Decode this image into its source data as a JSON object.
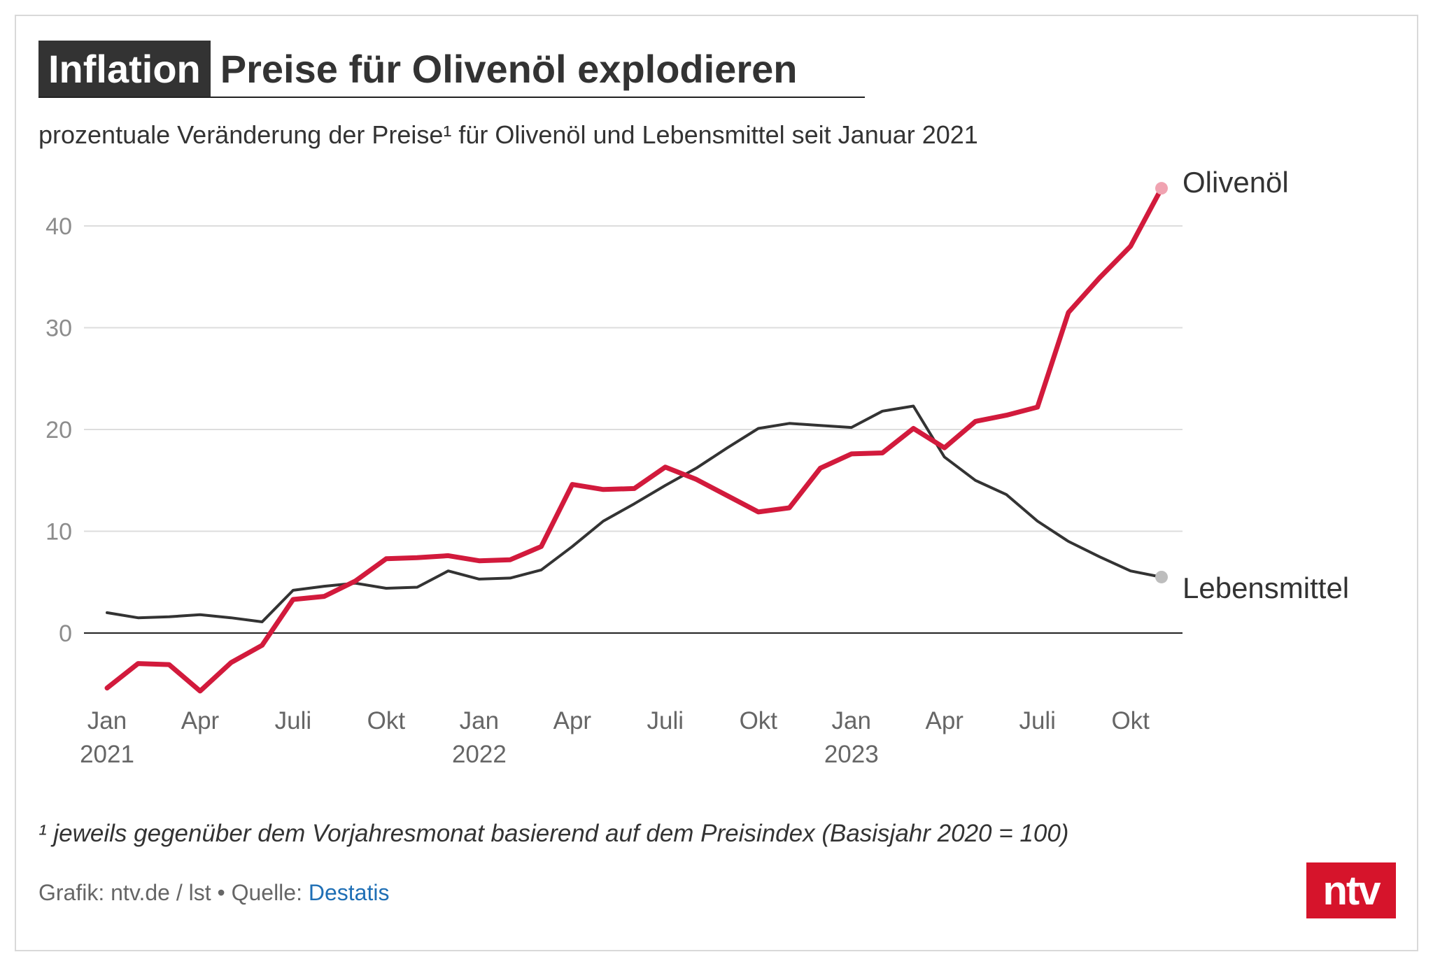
{
  "header": {
    "kicker": "Inflation",
    "headline": "Preise für Olivenöl explodieren",
    "subtitle": "prozentuale Veränderung der Preise¹ für Olivenöl und Lebensmittel seit Januar 2021"
  },
  "footer": {
    "footnote": "¹ jeweils gegenüber dem Vorjahresmonat basierend auf dem Preisindex (Basisjahr 2020 = 100)",
    "source_prefix": "Grafik: ntv.de / lst • Quelle: ",
    "source_link": "Destatis",
    "logo": "ntv"
  },
  "colors": {
    "olive": "#d21a3c",
    "food": "#333333",
    "grid": "#dddddd",
    "axis_text": "#8c8c8c",
    "logo_bg": "#d6142b"
  },
  "chart_data": {
    "type": "line",
    "ylim": [
      -7,
      47
    ],
    "yticks": [
      0,
      10,
      20,
      30,
      40
    ],
    "grid": true,
    "x_months": 35,
    "x_tick_labels": [
      {
        "index": 0,
        "label": "Jan",
        "year": "2021"
      },
      {
        "index": 3,
        "label": "Apr",
        "year": ""
      },
      {
        "index": 6,
        "label": "Juli",
        "year": ""
      },
      {
        "index": 9,
        "label": "Okt",
        "year": ""
      },
      {
        "index": 12,
        "label": "Jan",
        "year": "2022"
      },
      {
        "index": 15,
        "label": "Apr",
        "year": ""
      },
      {
        "index": 18,
        "label": "Juli",
        "year": ""
      },
      {
        "index": 21,
        "label": "Okt",
        "year": ""
      },
      {
        "index": 24,
        "label": "Jan",
        "year": "2023"
      },
      {
        "index": 27,
        "label": "Apr",
        "year": ""
      },
      {
        "index": 30,
        "label": "Juli",
        "year": ""
      },
      {
        "index": 33,
        "label": "Okt",
        "year": ""
      }
    ],
    "series": [
      {
        "name": "Olivenöl",
        "color": "#d21a3c",
        "values": [
          -5.4,
          -3.0,
          -3.1,
          -5.7,
          -2.9,
          -1.2,
          3.3,
          3.6,
          5.1,
          7.3,
          7.4,
          7.6,
          7.1,
          7.2,
          8.5,
          14.6,
          14.1,
          14.2,
          16.3,
          15.1,
          13.5,
          11.9,
          12.3,
          16.2,
          17.6,
          17.7,
          20.1,
          18.2,
          20.8,
          21.4,
          22.2,
          31.5,
          34.9,
          38.0,
          43.7
        ]
      },
      {
        "name": "Lebensmittel",
        "color": "#333333",
        "values": [
          2.0,
          1.5,
          1.6,
          1.8,
          1.5,
          1.1,
          4.2,
          4.6,
          4.9,
          4.4,
          4.5,
          6.1,
          5.3,
          5.4,
          6.2,
          8.5,
          11.0,
          12.7,
          14.5,
          16.2,
          18.2,
          20.1,
          20.6,
          20.4,
          20.2,
          21.8,
          22.3,
          17.3,
          15.0,
          13.6,
          11.0,
          9.0,
          7.5,
          6.1,
          5.5
        ]
      }
    ],
    "end_labels": [
      "Olivenöl",
      "Lebensmittel"
    ]
  }
}
